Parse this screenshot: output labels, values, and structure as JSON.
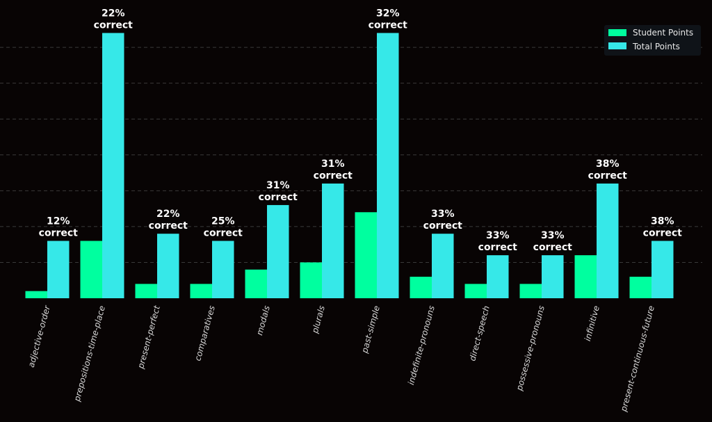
{
  "chart_data": {
    "type": "bar",
    "title": "",
    "xlabel": "",
    "ylabel": "",
    "ylim": [
      0,
      41.6
    ],
    "grid": true,
    "legend_position": "top-right",
    "categories": [
      "adjective-order",
      "prepositions-time-place",
      "present-perfect",
      "comparatives",
      "modals",
      "plurals",
      "past-simple",
      "indefinite-pronouns",
      "direct-speech",
      "possessive-pronouns",
      "infinitive",
      "present-continuous-future"
    ],
    "series": [
      {
        "name": "Student Points",
        "color": "#00ff9f",
        "values": [
          1,
          8,
          2,
          2,
          4,
          5,
          12,
          3,
          2,
          2,
          6,
          3
        ]
      },
      {
        "name": "Total Points",
        "color": "#36e8e8",
        "values": [
          8,
          37,
          9,
          8,
          13,
          16,
          37,
          9,
          6,
          6,
          16,
          8
        ]
      }
    ],
    "annotations": [
      "12%\ncorrect",
      "22%\ncorrect",
      "22%\ncorrect",
      "25%\ncorrect",
      "31%\ncorrect",
      "31%\ncorrect",
      "32%\ncorrect",
      "33%\ncorrect",
      "33%\ncorrect",
      "33%\ncorrect",
      "38%\ncorrect",
      "38%\ncorrect"
    ],
    "gridlines": [
      5,
      10,
      15,
      20,
      25,
      30,
      35
    ]
  }
}
